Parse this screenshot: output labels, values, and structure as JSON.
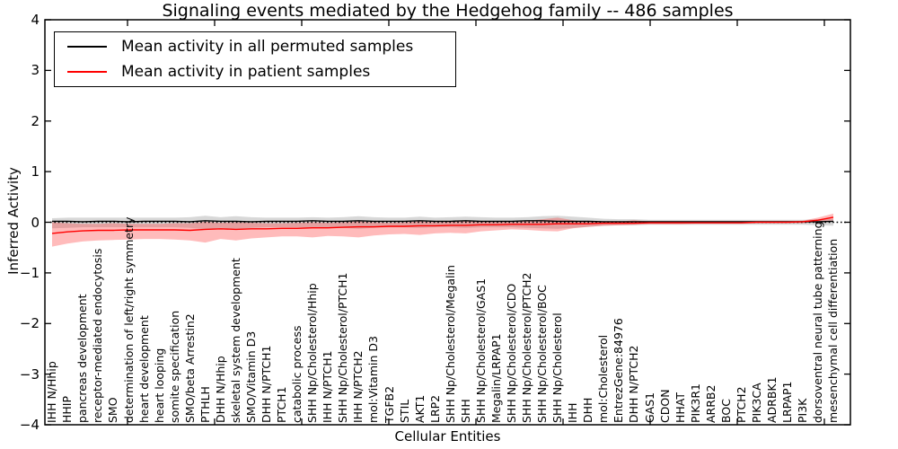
{
  "chart_data": {
    "type": "line",
    "title": "Signaling events mediated by the Hedgehog family -- 486 samples",
    "xlabel": "Cellular Entities",
    "ylabel": "Inferred Activity",
    "ylim": [
      -4,
      4
    ],
    "yticks": [
      4,
      3,
      2,
      1,
      0,
      -1,
      -2,
      -3,
      -4
    ],
    "grid": false,
    "legend": {
      "position": "upper-left",
      "entries": [
        {
          "label": "Mean activity in all permuted samples",
          "color": "#000000"
        },
        {
          "label": "Mean activity in patient samples",
          "color": "#ff0000"
        }
      ]
    },
    "reference_line": {
      "y": 0,
      "style": "dotted",
      "color": "#000000"
    },
    "categories": [
      "IHH N/Hhip",
      "HHIP",
      "pancreas development",
      "receptor-mediated endocytosis",
      "SMO",
      "determination of left/right symmetry",
      "heart development",
      "heart looping",
      "somite specification",
      "SMO/beta Arrestin2",
      "PTHLH",
      "DHH N/Hhip",
      "skeletal system development",
      "SMO/Vitamin D3",
      "DHH N/PTCH1",
      "PTCH1",
      "catabolic process",
      "SHH Np/Cholesterol/Hhip",
      "IHH N/PTCH1",
      "SHH Np/Cholesterol/PTCH1",
      "IHH N/PTCH2",
      "mol:Vitamin D3",
      "TGFB2",
      "STIL",
      "AKT1",
      "LRP2",
      "SHH Np/Cholesterol/Megalin",
      "SHH",
      "SHH Np/Cholesterol/GAS1",
      "Megalin/LRPAP1",
      "SHH Np/Cholesterol/CDO",
      "SHH Np/Cholesterol/PTCH2",
      "SHH Np/Cholesterol/BOC",
      "SHH Np/Cholesterol",
      "IHH",
      "DHH",
      "mol:Cholesterol",
      "EntrezGene:84976",
      "DHH N/PTCH2",
      "GAS1",
      "CDON",
      "HHAT",
      "PIK3R1",
      "ARRB2",
      "BOC",
      "PTCH2",
      "PIK3CA",
      "ADRBK1",
      "LRPAP1",
      "PI3K",
      "dorsoventral neural tube patterning",
      "mesenchymal cell differentiation"
    ],
    "series": [
      {
        "name": "Mean activity in all permuted samples",
        "color": "#000000",
        "band_color": "#999999",
        "band_opacity": 0.38,
        "values": [
          0.02,
          0.02,
          0.01,
          0.02,
          0.02,
          0.01,
          0.02,
          0.02,
          0.02,
          0.01,
          0.03,
          0.02,
          0.02,
          0.01,
          0.02,
          0.02,
          0.02,
          0.03,
          0.02,
          0.02,
          0.03,
          0.02,
          0.02,
          0.02,
          0.03,
          0.02,
          0.02,
          0.03,
          0.02,
          0.02,
          0.02,
          0.03,
          0.03,
          0.02,
          0.02,
          0.02,
          0.01,
          0.01,
          0.01,
          0.01,
          0.01,
          0.01,
          0.01,
          0.01,
          0.01,
          0.01,
          0.01,
          0.01,
          0.01,
          0.01,
          0.01,
          0.02
        ],
        "band_upper": [
          0.08,
          0.09,
          0.09,
          0.09,
          0.09,
          0.09,
          0.09,
          0.09,
          0.09,
          0.1,
          0.13,
          0.1,
          0.12,
          0.1,
          0.09,
          0.09,
          0.09,
          0.1,
          0.09,
          0.1,
          0.12,
          0.1,
          0.09,
          0.09,
          0.11,
          0.09,
          0.1,
          0.11,
          0.1,
          0.09,
          0.09,
          0.1,
          0.12,
          0.13,
          0.11,
          0.09,
          0.07,
          0.06,
          0.06,
          0.05,
          0.05,
          0.05,
          0.05,
          0.05,
          0.05,
          0.05,
          0.05,
          0.05,
          0.05,
          0.05,
          0.06,
          0.07
        ],
        "band_lower": [
          -0.12,
          -0.11,
          -0.1,
          -0.1,
          -0.1,
          -0.1,
          -0.1,
          -0.1,
          -0.1,
          -0.11,
          -0.14,
          -0.11,
          -0.13,
          -0.11,
          -0.1,
          -0.1,
          -0.1,
          -0.11,
          -0.1,
          -0.11,
          -0.13,
          -0.11,
          -0.1,
          -0.1,
          -0.11,
          -0.1,
          -0.1,
          -0.11,
          -0.1,
          -0.1,
          -0.1,
          -0.11,
          -0.12,
          -0.13,
          -0.11,
          -0.09,
          -0.07,
          -0.06,
          -0.06,
          -0.05,
          -0.05,
          -0.05,
          -0.05,
          -0.05,
          -0.05,
          -0.05,
          -0.05,
          -0.05,
          -0.05,
          -0.05,
          -0.06,
          -0.07
        ]
      },
      {
        "name": "Mean activity in patient samples",
        "color": "#ff0000",
        "band_color": "#ff2a2a",
        "band_opacity": 0.32,
        "values": [
          -0.22,
          -0.19,
          -0.17,
          -0.16,
          -0.16,
          -0.15,
          -0.15,
          -0.15,
          -0.15,
          -0.16,
          -0.14,
          -0.13,
          -0.14,
          -0.13,
          -0.13,
          -0.12,
          -0.12,
          -0.11,
          -0.11,
          -0.1,
          -0.09,
          -0.09,
          -0.08,
          -0.08,
          -0.07,
          -0.07,
          -0.06,
          -0.06,
          -0.05,
          -0.05,
          -0.04,
          -0.04,
          -0.04,
          -0.03,
          -0.03,
          -0.03,
          -0.02,
          -0.02,
          -0.02,
          -0.01,
          -0.01,
          -0.01,
          -0.01,
          -0.01,
          -0.01,
          -0.01,
          0.0,
          0.0,
          0.0,
          0.01,
          0.04,
          0.1
        ],
        "band_upper": [
          0.0,
          -0.02,
          -0.03,
          -0.03,
          -0.02,
          -0.03,
          -0.03,
          -0.03,
          -0.02,
          -0.02,
          0.01,
          -0.01,
          0.0,
          -0.01,
          -0.02,
          -0.02,
          -0.01,
          0.0,
          -0.01,
          0.0,
          0.02,
          0.0,
          -0.01,
          0.0,
          0.02,
          0.0,
          0.01,
          0.03,
          0.01,
          0.01,
          0.01,
          0.03,
          0.06,
          0.09,
          0.04,
          0.01,
          0.01,
          0.01,
          0.04,
          0.01,
          0.01,
          0.01,
          0.01,
          0.01,
          0.01,
          0.01,
          0.02,
          0.02,
          0.02,
          0.03,
          0.09,
          0.17
        ],
        "band_lower": [
          -0.48,
          -0.42,
          -0.38,
          -0.36,
          -0.35,
          -0.34,
          -0.33,
          -0.33,
          -0.34,
          -0.36,
          -0.4,
          -0.33,
          -0.36,
          -0.32,
          -0.3,
          -0.28,
          -0.28,
          -0.3,
          -0.27,
          -0.28,
          -0.3,
          -0.26,
          -0.24,
          -0.23,
          -0.25,
          -0.22,
          -0.21,
          -0.22,
          -0.18,
          -0.16,
          -0.14,
          -0.15,
          -0.17,
          -0.18,
          -0.12,
          -0.09,
          -0.07,
          -0.06,
          -0.05,
          -0.04,
          -0.04,
          -0.04,
          -0.03,
          -0.03,
          -0.03,
          -0.03,
          -0.02,
          -0.02,
          -0.02,
          -0.02,
          0.01,
          0.04
        ]
      }
    ]
  }
}
